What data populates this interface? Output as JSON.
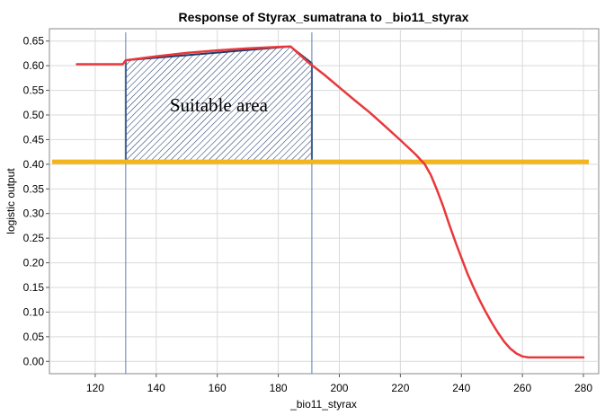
{
  "chart_data": {
    "type": "line",
    "title": "Response of Styrax_sumatrana to _bio11_styrax",
    "xlabel": "_bio11_styrax",
    "ylabel": "logistic output",
    "xlim": [
      105,
      285
    ],
    "ylim": [
      -0.025,
      0.675
    ],
    "x_ticks": [
      120,
      140,
      160,
      180,
      200,
      220,
      240,
      260,
      280
    ],
    "y_ticks": [
      0.0,
      0.05,
      0.1,
      0.15,
      0.2,
      0.25,
      0.3,
      0.35,
      0.4,
      0.45,
      0.5,
      0.55,
      0.6,
      0.65
    ],
    "grid": true,
    "series": [
      {
        "color": "#e8383b",
        "x": [
          114,
          124,
          129,
          130,
          140,
          150,
          160,
          170,
          180,
          184,
          190,
          195,
          200,
          205,
          210,
          215,
          220,
          225,
          228,
          230,
          232,
          234,
          236,
          238,
          240,
          242,
          244,
          246,
          248,
          250,
          252,
          254,
          256,
          258,
          260,
          262,
          264,
          266,
          270,
          275,
          280
        ],
        "y": [
          0.603,
          0.603,
          0.603,
          0.611,
          0.619,
          0.626,
          0.631,
          0.635,
          0.638,
          0.639,
          0.606,
          0.582,
          0.556,
          0.53,
          0.505,
          0.477,
          0.449,
          0.42,
          0.4,
          0.378,
          0.348,
          0.315,
          0.278,
          0.243,
          0.21,
          0.178,
          0.15,
          0.124,
          0.1,
          0.078,
          0.058,
          0.04,
          0.026,
          0.016,
          0.01,
          0.008,
          0.008,
          0.008,
          0.008,
          0.008,
          0.008
        ]
      }
    ],
    "threshold": {
      "y": 0.405,
      "x_start": 105,
      "x_end": 285,
      "color": "#f2b51c"
    },
    "vertical_lines": [
      {
        "x": 130,
        "color": "#5b7fb5"
      },
      {
        "x": 191,
        "color": "#5b7fb5"
      }
    ],
    "suitable_area": {
      "label": "Suitable area",
      "outline": [
        [
          130,
          0.405
        ],
        [
          130,
          0.611
        ],
        [
          184,
          0.639
        ],
        [
          191,
          0.605
        ],
        [
          191,
          0.405
        ]
      ],
      "color": "#1f3a6b"
    }
  }
}
